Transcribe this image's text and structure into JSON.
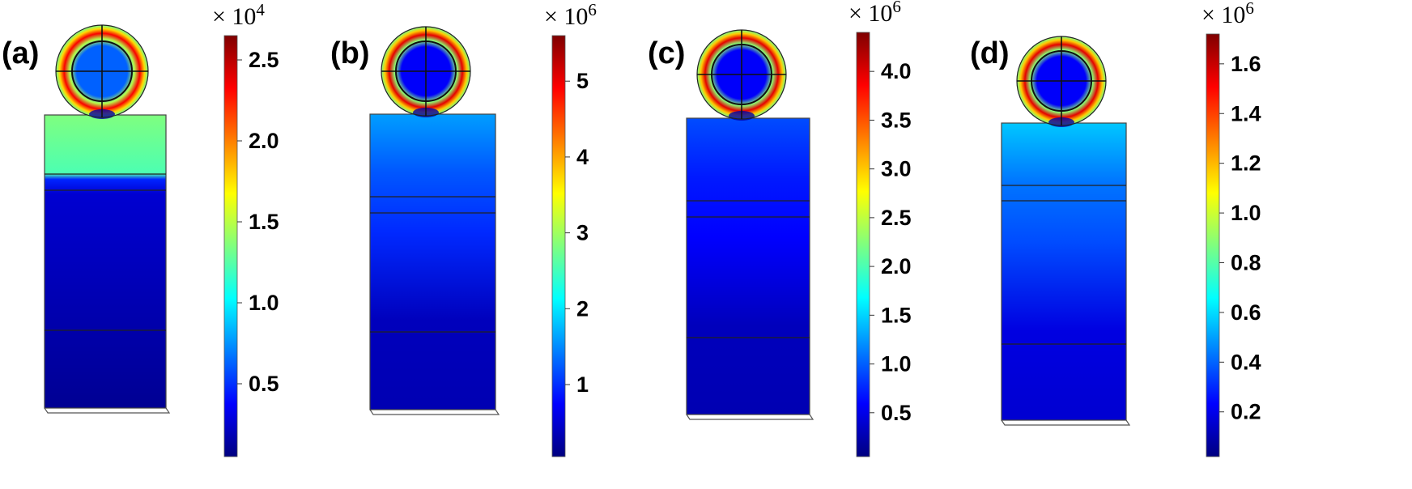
{
  "panels": [
    {
      "label": "(a)",
      "multiplier": "× 10",
      "exponent": "4",
      "ticks": [
        {
          "text": "0.5",
          "value": 0.5
        },
        {
          "text": "1.0",
          "value": 1.0
        },
        {
          "text": "1.5",
          "value": 1.5
        },
        {
          "text": "2.0",
          "value": 2.0
        },
        {
          "text": "2.5",
          "value": 2.5
        }
      ],
      "scale_range": [
        0.05,
        2.65
      ],
      "sphere_rim_level": 0.88,
      "sphere_core_level": 0.22,
      "pillar_top_level": 0.5,
      "pillar_bottom_level": 0.02
    },
    {
      "label": "(b)",
      "multiplier": "× 10",
      "exponent": "6",
      "ticks": [
        {
          "text": "1",
          "value": 1
        },
        {
          "text": "2",
          "value": 2
        },
        {
          "text": "3",
          "value": 3
        },
        {
          "text": "4",
          "value": 4
        },
        {
          "text": "5",
          "value": 5
        }
      ],
      "scale_range": [
        0.05,
        5.6
      ],
      "sphere_rim_level": 0.9,
      "sphere_core_level": 0.12,
      "pillar_top_level": 0.28,
      "pillar_bottom_level": 0.05
    },
    {
      "label": "(c)",
      "multiplier": "× 10",
      "exponent": "6",
      "ticks": [
        {
          "text": "0.5",
          "value": 0.5
        },
        {
          "text": "1.0",
          "value": 1.0
        },
        {
          "text": "1.5",
          "value": 1.5
        },
        {
          "text": "2.0",
          "value": 2.0
        },
        {
          "text": "2.5",
          "value": 2.5
        },
        {
          "text": "3.0",
          "value": 3.0
        },
        {
          "text": "3.5",
          "value": 3.5
        },
        {
          "text": "4.0",
          "value": 4.0
        }
      ],
      "scale_range": [
        0.05,
        4.4
      ],
      "sphere_rim_level": 0.9,
      "sphere_core_level": 0.12,
      "pillar_top_level": 0.2,
      "pillar_bottom_level": 0.05
    },
    {
      "label": "(d)",
      "multiplier": "× 10",
      "exponent": "6",
      "ticks": [
        {
          "text": "0.2",
          "value": 0.2
        },
        {
          "text": "0.4",
          "value": 0.4
        },
        {
          "text": "0.6",
          "value": 0.6
        },
        {
          "text": "0.8",
          "value": 0.8
        },
        {
          "text": "1.0",
          "value": 1.0
        },
        {
          "text": "1.2",
          "value": 1.2
        },
        {
          "text": "1.4",
          "value": 1.4
        },
        {
          "text": "1.6",
          "value": 1.6
        }
      ],
      "scale_range": [
        0.02,
        1.72
      ],
      "sphere_rim_level": 0.9,
      "sphere_core_level": 0.12,
      "pillar_top_level": 0.32,
      "pillar_bottom_level": 0.08
    }
  ],
  "colormap": "jet",
  "colors": {
    "jet": [
      "#00007f",
      "#0000ff",
      "#007fff",
      "#00ffff",
      "#7fff7f",
      "#ffff00",
      "#ff7f00",
      "#ff0000",
      "#7f0000"
    ]
  }
}
